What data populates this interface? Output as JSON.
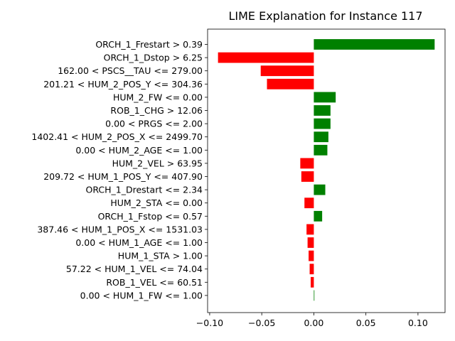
{
  "chart_data": {
    "type": "bar",
    "orientation": "horizontal",
    "title": "LIME Explanation for Instance 117",
    "xlabel": "",
    "ylabel": "",
    "xlim": [
      -0.102,
      0.126
    ],
    "xticks": [
      -0.1,
      -0.05,
      0.0,
      0.05,
      0.1
    ],
    "xtick_labels": [
      "−0.10",
      "−0.05",
      "0.00",
      "0.05",
      "0.10"
    ],
    "grid": false,
    "legend": "none",
    "colors": {
      "positive": "#008000",
      "negative": "#ff0000"
    },
    "categories": [
      "ORCH_1_Frestart > 0.39",
      "ORCH_1_Dstop > 6.25",
      "162.00 < PSCS__TAU <= 279.00",
      "201.21 < HUM_2_POS_Y <= 304.36",
      "HUM_2_FW <= 0.00",
      "ROB_1_CHG > 12.06",
      "0.00 < PRGS <= 2.00",
      "1402.41 < HUM_2_POS_X <= 2499.70",
      "0.00 < HUM_2_AGE <= 1.00",
      "HUM_2_VEL > 63.95",
      "209.72 < HUM_1_POS_Y <= 407.90",
      "ORCH_1_Drestart <= 2.34",
      "HUM_2_STA <= 0.00",
      "ORCH_1_Fstop <= 0.57",
      "387.46 < HUM_1_POS_X <= 1531.03",
      "0.00 < HUM_1_AGE <= 1.00",
      "HUM_1_STA > 1.00",
      "57.22 < HUM_1_VEL <= 74.04",
      "ROB_1_VEL <= 60.51",
      "0.00 < HUM_1_FW <= 1.00"
    ],
    "values": [
      0.116,
      -0.092,
      -0.051,
      -0.045,
      0.021,
      0.016,
      0.016,
      0.014,
      0.013,
      -0.013,
      -0.012,
      0.011,
      -0.009,
      0.008,
      -0.007,
      -0.006,
      -0.005,
      -0.004,
      -0.003,
      0.0005
    ]
  }
}
